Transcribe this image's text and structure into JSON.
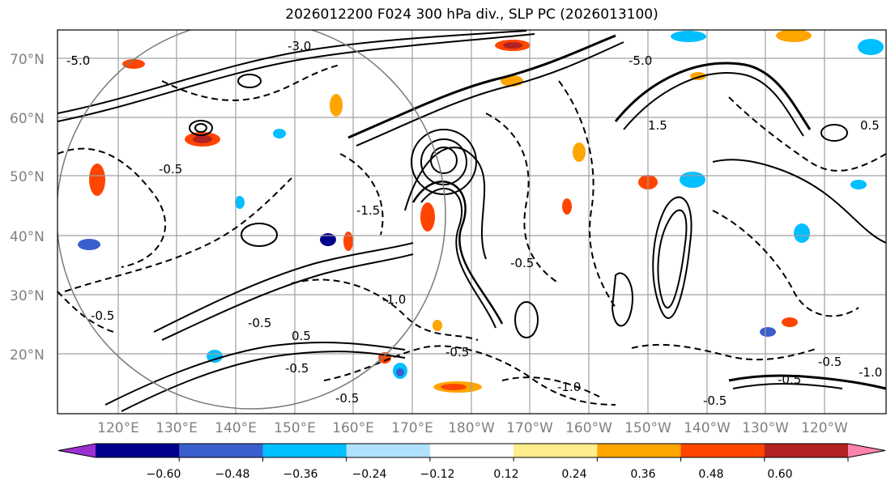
{
  "title": "2026012200 F024 300 hPa div., SLP PC (2026013100)",
  "map": {
    "lat_labels": [
      "70°N",
      "60°N",
      "50°N",
      "40°N",
      "30°N",
      "20°N"
    ],
    "lon_labels": [
      "120°E",
      "130°E",
      "140°E",
      "150°E",
      "160°E",
      "170°E",
      "180°W",
      "170°W",
      "160°W",
      "150°W",
      "140°W",
      "130°W",
      "120°W"
    ],
    "contour_labels": [
      "-5.0",
      "-3.0",
      "-0.5",
      "-0.5",
      "-0.5",
      "0.5",
      "-1.5",
      "-1.0",
      "-0.5",
      "-0.5",
      "-1.0",
      "-0.5",
      "-0.5",
      "-0.5",
      "-0.5",
      "0.5",
      "-5.0",
      "1.5",
      "-0.5",
      "-1.0"
    ],
    "land_color": "#000000",
    "grid_color": "#a0a0a0"
  },
  "colorbar": {
    "colors": [
      "#9b30d0",
      "#00008b",
      "#3a5fcd",
      "#00bfff",
      "#b0e2ff",
      "#ffffff",
      "#ffec8b",
      "#ffa500",
      "#ff4500",
      "#b22222",
      "#ff82ab"
    ],
    "tick_labels": [
      "−0.60",
      "−0.48",
      "−0.36",
      "−0.24",
      "−0.12",
      "0.12",
      "0.24",
      "0.36",
      "0.48",
      "0.60"
    ],
    "extend": "both"
  }
}
